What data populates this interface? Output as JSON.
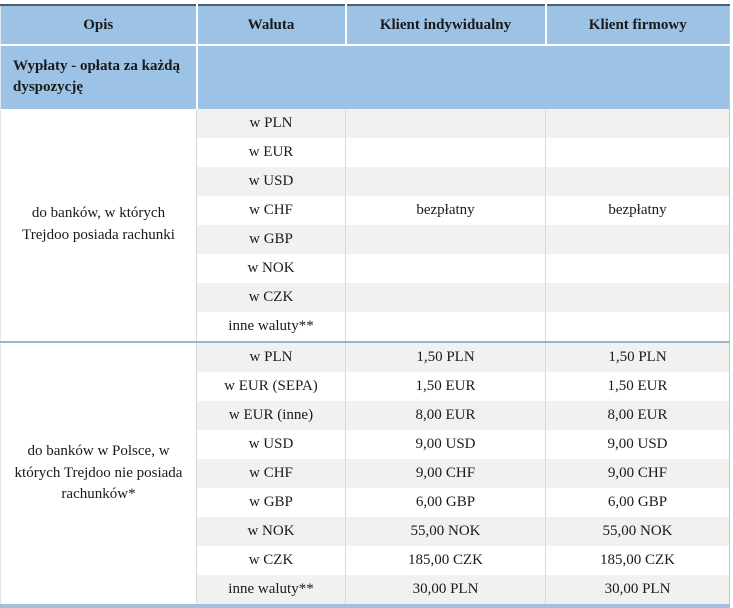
{
  "table": {
    "headers": {
      "opis": "Opis",
      "waluta": "Waluta",
      "individual": "Klient indywidualny",
      "business": "Klient firmowy"
    },
    "section": {
      "title": "Wypłaty - opłata za każdą dyspozycję"
    },
    "blocks": [
      {
        "description": "do banków, w których Trejdoo posiada rachunki",
        "rows": [
          {
            "currency": "w PLN",
            "individual": "",
            "business": ""
          },
          {
            "currency": "w EUR",
            "individual": "",
            "business": ""
          },
          {
            "currency": "w USD",
            "individual": "",
            "business": ""
          },
          {
            "currency": "w CHF",
            "individual": "bezpłatny",
            "business": "bezpłatny"
          },
          {
            "currency": "w GBP",
            "individual": "",
            "business": ""
          },
          {
            "currency": "w NOK",
            "individual": "",
            "business": ""
          },
          {
            "currency": "w CZK",
            "individual": "",
            "business": ""
          },
          {
            "currency": "inne waluty**",
            "individual": "",
            "business": ""
          }
        ]
      },
      {
        "description": "do banków w Polsce, w których Trejdoo nie posiada rachunków*",
        "rows": [
          {
            "currency": "w PLN",
            "individual": "1,50 PLN",
            "business": "1,50 PLN"
          },
          {
            "currency": "w EUR (SEPA)",
            "individual": "1,50 EUR",
            "business": "1,50 EUR"
          },
          {
            "currency": "w EUR (inne)",
            "individual": "8,00 EUR",
            "business": "8,00 EUR"
          },
          {
            "currency": "w USD",
            "individual": "9,00 USD",
            "business": "9,00 USD"
          },
          {
            "currency": "w CHF",
            "individual": "9,00 CHF",
            "business": "9,00 CHF"
          },
          {
            "currency": "w GBP",
            "individual": "6,00 GBP",
            "business": "6,00 GBP"
          },
          {
            "currency": "w NOK",
            "individual": "55,00 NOK",
            "business": "55,00 NOK"
          },
          {
            "currency": "w CZK",
            "individual": "185,00 CZK",
            "business": "185,00 CZK"
          },
          {
            "currency": "inne waluty**",
            "individual": "30,00 PLN",
            "business": "30,00 PLN"
          }
        ]
      }
    ],
    "colors": {
      "header_blue": "#9cc2e5",
      "stripe_gray": "#f1f1ef",
      "block_divider_blue": "#9bb3cb",
      "bottom_border_blue": "#a3bfdc",
      "top_border_dark": "#4a5e74"
    }
  }
}
